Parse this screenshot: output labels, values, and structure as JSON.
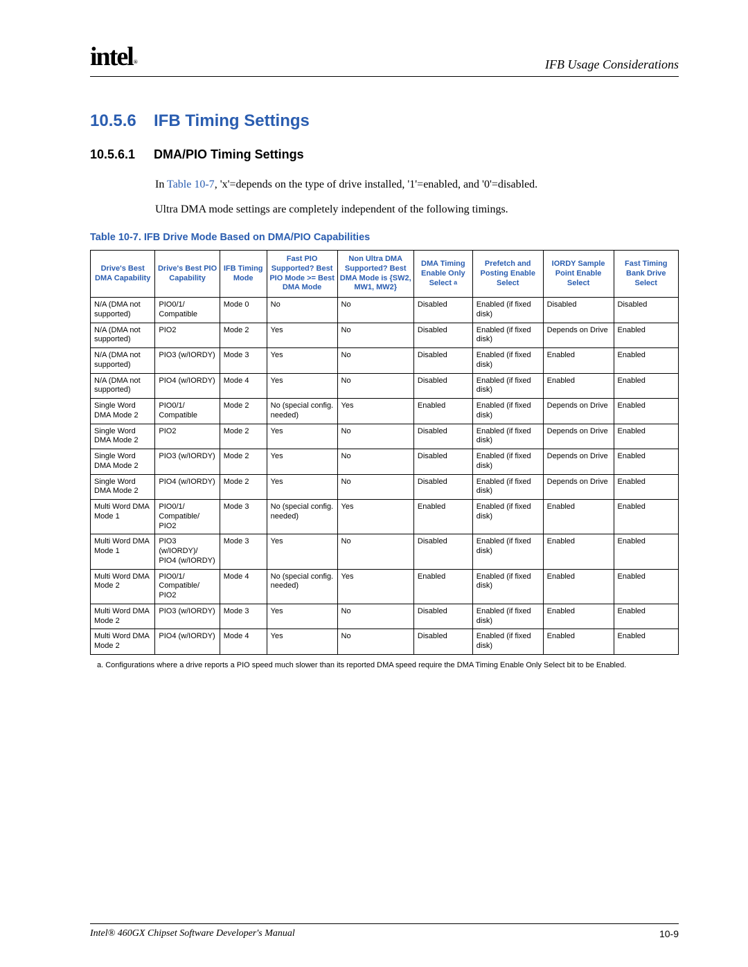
{
  "header": {
    "logo_text": "intel",
    "logo_mark": "®",
    "right_text": "IFB Usage Considerations"
  },
  "section": {
    "h2_num": "10.5.6",
    "h2_title": "IFB Timing Settings",
    "h3_num": "10.5.6.1",
    "h3_title": "DMA/PIO Timing Settings",
    "para1_pre": "In ",
    "para1_link": "Table 10-7",
    "para1_post": ", 'x'=depends on the type of drive installed, '1'=enabled, and '0'=disabled.",
    "para2": "Ultra DMA mode settings are completely independent of the following timings.",
    "table_caption": "Table 10-7. IFB Drive Mode Based on DMA/PIO Capabilities"
  },
  "table": {
    "col_widths": [
      "11%",
      "11%",
      "8%",
      "12%",
      "13%",
      "10%",
      "12%",
      "12%",
      "11%"
    ],
    "headers": [
      "Drive's Best DMA Capability",
      "Drive's Best PIO Capability",
      "IFB Timing Mode",
      "Fast PIO Supported? Best PIO Mode >= Best DMA Mode",
      "Non Ultra DMA Supported? Best DMA Mode is {SW2, MW1, MW2}",
      "DMA Timing Enable Only Select a",
      "Prefetch and Posting Enable Select",
      "IORDY Sample Point Enable Select",
      "Fast Timing Bank Drive Select"
    ],
    "header_sup_col": 5,
    "rows": [
      [
        "N/A (DMA not supported)",
        "PIO0/1/ Compatible",
        "Mode 0",
        "No",
        "No",
        "Disabled",
        "Enabled (if fixed disk)",
        "Disabled",
        "Disabled"
      ],
      [
        "N/A (DMA not supported)",
        "PIO2",
        "Mode 2",
        "Yes",
        "No",
        "Disabled",
        "Enabled (if fixed disk)",
        "Depends on Drive",
        "Enabled"
      ],
      [
        "N/A (DMA not supported)",
        "PIO3 (w/IORDY)",
        "Mode 3",
        "Yes",
        "No",
        "Disabled",
        "Enabled (if fixed disk)",
        "Enabled",
        "Enabled"
      ],
      [
        "N/A (DMA not supported)",
        "PIO4 (w/IORDY)",
        "Mode 4",
        "Yes",
        "No",
        "Disabled",
        "Enabled (if fixed disk)",
        "Enabled",
        "Enabled"
      ],
      [
        "Single Word DMA Mode 2",
        "PIO0/1/ Compatible",
        "Mode 2",
        "No (special config. needed)",
        "Yes",
        "Enabled",
        "Enabled (if fixed disk)",
        "Depends on Drive",
        "Enabled"
      ],
      [
        "Single Word DMA Mode 2",
        "PIO2",
        "Mode 2",
        "Yes",
        "No",
        "Disabled",
        "Enabled (if fixed disk)",
        "Depends on Drive",
        "Enabled"
      ],
      [
        "Single Word DMA Mode 2",
        "PIO3 (w/IORDY)",
        "Mode 2",
        "Yes",
        "No",
        "Disabled",
        "Enabled (if fixed disk)",
        "Depends on Drive",
        "Enabled"
      ],
      [
        "Single Word DMA Mode 2",
        "PIO4 (w/IORDY)",
        "Mode 2",
        "Yes",
        "No",
        "Disabled",
        "Enabled (if fixed disk)",
        "Depends on Drive",
        "Enabled"
      ],
      [
        "Multi Word DMA Mode 1",
        "PIO0/1/ Compatible/ PIO2",
        "Mode 3",
        "No (special config. needed)",
        "Yes",
        "Enabled",
        "Enabled (if fixed disk)",
        "Enabled",
        "Enabled"
      ],
      [
        "Multi Word DMA Mode 1",
        "PIO3 (w/IORDY)/\nPIO4 (w/IORDY)",
        "Mode 3",
        "Yes",
        "No",
        "Disabled",
        "Enabled (if fixed disk)",
        "Enabled",
        "Enabled"
      ],
      [
        "Multi Word DMA Mode 2",
        "PIO0/1/ Compatible/ PIO2",
        "Mode 4",
        "No (special config. needed)",
        "Yes",
        "Enabled",
        "Enabled (if fixed disk)",
        "Enabled",
        "Enabled"
      ],
      [
        "Multi Word DMA Mode 2",
        "PIO3 (w/IORDY)",
        "Mode 3",
        "Yes",
        "No",
        "Disabled",
        "Enabled (if fixed disk)",
        "Enabled",
        "Enabled"
      ],
      [
        "Multi Word DMA Mode 2",
        "PIO4 (w/IORDY)",
        "Mode 4",
        "Yes",
        "No",
        "Disabled",
        "Enabled (if fixed disk)",
        "Enabled",
        "Enabled"
      ]
    ]
  },
  "footnote": "a. Configurations where a drive reports a PIO speed much slower than its reported DMA speed require the DMA Timing Enable Only Select bit to be Enabled.",
  "footer": {
    "left": "Intel® 460GX Chipset Software Developer's Manual",
    "right": "10-9"
  },
  "colors": {
    "link": "#2a5db0",
    "text": "#000000",
    "background": "#ffffff"
  }
}
